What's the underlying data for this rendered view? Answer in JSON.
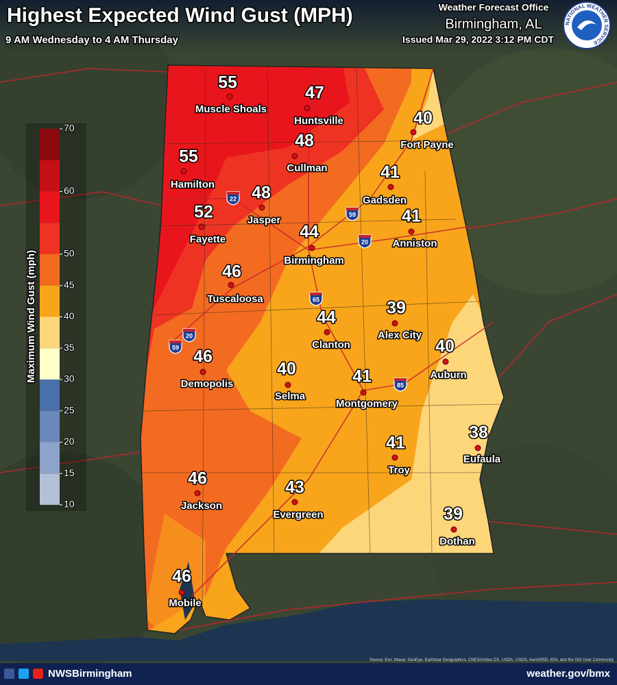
{
  "header": {
    "title": "Highest Expected Wind Gust (MPH)",
    "subtitle": "9 AM Wednesday to 4 AM Thursday",
    "office": "Weather Forecast Office",
    "location": "Birmingham, AL",
    "issued": "Issued Mar 29, 2022 3:12 PM CDT",
    "logo_text": "NATIONAL WEATHER SERVICE"
  },
  "legend": {
    "title": "Maximum Wind Gust (mph)",
    "scale": [
      10,
      70
    ],
    "ticks": [
      70,
      60,
      50,
      45,
      40,
      35,
      30,
      25,
      20,
      15,
      10
    ],
    "bins": [
      10,
      15,
      20,
      25,
      30,
      35,
      40,
      45,
      50,
      55,
      60,
      65,
      70
    ],
    "colors": [
      "#b3c0d6",
      "#8ea3c9",
      "#6b88bb",
      "#4a6fab",
      "#ffffc8",
      "#fdd67a",
      "#f8a51c",
      "#f36b21",
      "#ef3323",
      "#e8161c",
      "#c40f17",
      "#8a0a0e"
    ]
  },
  "cities": [
    {
      "name": "Muscle Shoals",
      "value": 55
    },
    {
      "name": "Huntsville",
      "value": 47
    },
    {
      "name": "Fort Payne",
      "value": 40
    },
    {
      "name": "Cullman",
      "value": 48
    },
    {
      "name": "Hamilton",
      "value": 55
    },
    {
      "name": "Gadsden",
      "value": 41
    },
    {
      "name": "Jasper",
      "value": 48
    },
    {
      "name": "Anniston",
      "value": 41
    },
    {
      "name": "Fayette",
      "value": 52
    },
    {
      "name": "Birmingham",
      "value": 44
    },
    {
      "name": "Tuscaloosa",
      "value": 46
    },
    {
      "name": "Alex City",
      "value": 39
    },
    {
      "name": "Clanton",
      "value": 44
    },
    {
      "name": "Auburn",
      "value": 40
    },
    {
      "name": "Demopolis",
      "value": 46
    },
    {
      "name": "Selma",
      "value": 40
    },
    {
      "name": "Montgomery",
      "value": 41
    },
    {
      "name": "Eufaula",
      "value": 38
    },
    {
      "name": "Troy",
      "value": 41
    },
    {
      "name": "Jackson",
      "value": 46
    },
    {
      "name": "Evergreen",
      "value": 43
    },
    {
      "name": "Dothan",
      "value": 39
    },
    {
      "name": "Mobile",
      "value": 46
    }
  ],
  "interstates": [
    22,
    59,
    20,
    65,
    20,
    59,
    85
  ],
  "footer": {
    "handle": "NWSBirmingham",
    "url": "weather.gov/bmx",
    "source": "Source: Esri, Maxar, GeoEye, Earthstar Geographics, CNES/Airbus DS, USDA, USGS, AeroGRID, IGN, and the GIS User Community"
  }
}
